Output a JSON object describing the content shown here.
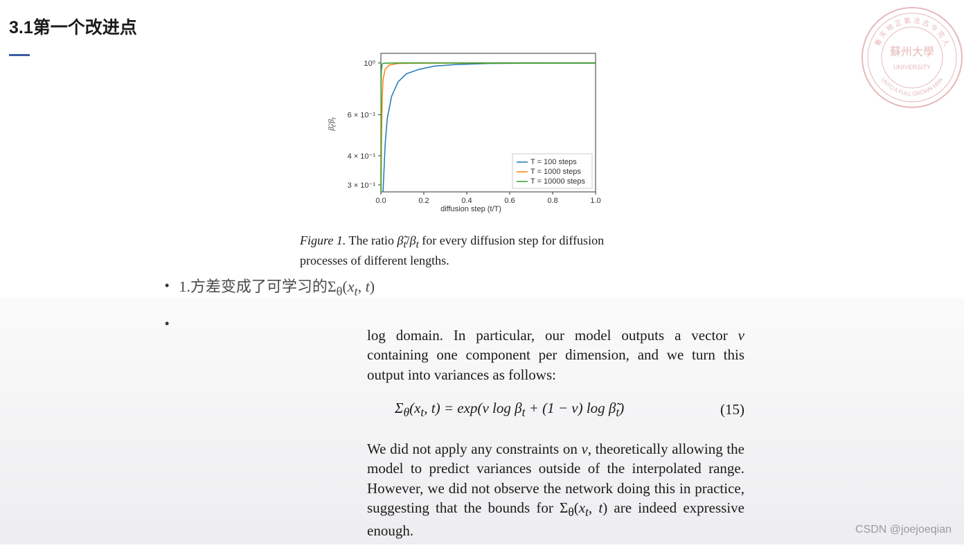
{
  "header": {
    "section_title": "3.1第一个改进点"
  },
  "seal": {
    "outer_color": "#d88a8a",
    "inner_color": "#e0a0a0",
    "text_top": "養天地正氣",
    "text_bottom": "UNTO A FULL GROWN MAN",
    "center_text": "蘇州大學"
  },
  "chart": {
    "type": "line",
    "ylabel": "β̃ₜ/βₜ",
    "xlabel": "diffusion step (t/T)",
    "xlim": [
      0,
      1.0
    ],
    "ylim_log": [
      0.28,
      1.1
    ],
    "xticks": [
      0.0,
      0.2,
      0.4,
      0.6,
      0.8,
      1.0
    ],
    "xtick_labels": [
      "0.0",
      "0.2",
      "0.4",
      "0.6",
      "0.8",
      "1.0"
    ],
    "yticks": [
      0.3,
      0.4,
      0.6,
      1.0
    ],
    "ytick_labels": [
      "3 × 10⁻¹",
      "4 × 10⁻¹",
      "6 × 10⁻¹",
      "10⁰"
    ],
    "background_color": "#ffffff",
    "border_color": "#333333",
    "tick_fontsize": 11,
    "label_fontsize": 11,
    "series": [
      {
        "name": "T = 100 steps",
        "color": "#1f77b4",
        "points": [
          [
            0.01,
            0.28
          ],
          [
            0.02,
            0.45
          ],
          [
            0.03,
            0.58
          ],
          [
            0.05,
            0.72
          ],
          [
            0.08,
            0.83
          ],
          [
            0.12,
            0.9
          ],
          [
            0.18,
            0.94
          ],
          [
            0.25,
            0.97
          ],
          [
            0.35,
            0.985
          ],
          [
            0.5,
            0.995
          ],
          [
            0.7,
            0.998
          ],
          [
            1.0,
            0.999
          ]
        ]
      },
      {
        "name": "T = 1000 steps",
        "color": "#ff7f0e",
        "points": [
          [
            0.001,
            0.28
          ],
          [
            0.003,
            0.5
          ],
          [
            0.006,
            0.7
          ],
          [
            0.01,
            0.85
          ],
          [
            0.02,
            0.94
          ],
          [
            0.04,
            0.98
          ],
          [
            0.08,
            0.995
          ],
          [
            0.15,
            0.998
          ],
          [
            0.3,
            0.999
          ],
          [
            1.0,
            1.0
          ]
        ]
      },
      {
        "name": "T = 10000 steps",
        "color": "#2ca02c",
        "points": [
          [
            0.0001,
            0.28
          ],
          [
            0.0005,
            0.55
          ],
          [
            0.001,
            0.78
          ],
          [
            0.002,
            0.92
          ],
          [
            0.005,
            0.985
          ],
          [
            0.01,
            0.997
          ],
          [
            0.03,
            0.999
          ],
          [
            0.1,
            1.0
          ],
          [
            1.0,
            1.0
          ]
        ]
      }
    ],
    "legend": {
      "position": "lower-right",
      "items": [
        "T = 100 steps",
        "T = 1000 steps",
        "T = 10000 steps"
      ]
    }
  },
  "figure_caption": {
    "label": "Figure 1.",
    "text_before": "  The ratio ",
    "ratio": "β̃ₜ/βₜ",
    "text_after": " for every diffusion step for diffusion processes of different lengths."
  },
  "bullets": {
    "item1_prefix": "1.方差变成了可学习的",
    "item1_math": "Σθ(xₜ, t)"
  },
  "paper": {
    "para1_a": "log domain.  In particular, our model outputs a vector ",
    "para1_v": "v",
    "para1_b": " containing one component per dimension, and we turn this output into variances as follows:",
    "equation": "Σθ(xₜ, t) = exp(v log βₜ + (1 − v) log β̃ₜ)",
    "equation_num": "(15)",
    "para2_a": "We did not apply any constraints on ",
    "para2_v": "v",
    "para2_b": ", theoretically allowing the model to predict variances outside of the interpolated range.  However, we did not observe the network doing this in practice, suggesting that the bounds for ",
    "para2_sigma": "Σθ(xₜ, t)",
    "para2_c": " are indeed expressive enough."
  },
  "watermark": "CSDN @joejoeqian"
}
